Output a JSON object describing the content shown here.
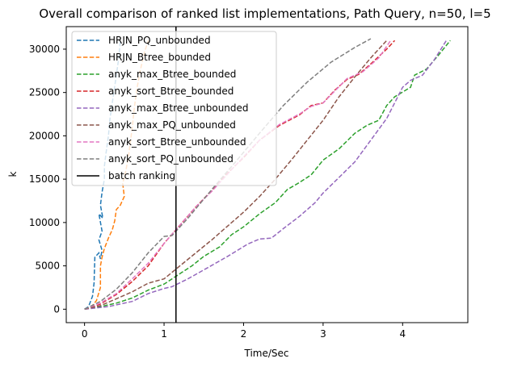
{
  "chart_data": {
    "type": "line",
    "title": "Overall comparison of ranked list implementations, Path Query, n=50, l=5",
    "xlabel": "Time/Sec",
    "ylabel": "k",
    "xlim": [
      -0.23,
      4.82
    ],
    "ylim": [
      -1550,
      32600
    ],
    "xticks": [
      0,
      1,
      2,
      3,
      4
    ],
    "yticks": [
      0,
      5000,
      10000,
      15000,
      20000,
      25000,
      30000
    ],
    "grid": false,
    "legend_position": "top-left",
    "series": [
      {
        "name": "HRJN_PQ_unbounded",
        "color": "#1f77b4",
        "style": "dashed",
        "points": [
          [
            0,
            0
          ],
          [
            0.05,
            300
          ],
          [
            0.1,
            1500
          ],
          [
            0.12,
            3000
          ],
          [
            0.13,
            6000
          ],
          [
            0.18,
            6500
          ],
          [
            0.2,
            5800
          ],
          [
            0.22,
            6800
          ],
          [
            0.18,
            8000
          ],
          [
            0.22,
            9000
          ],
          [
            0.18,
            11000
          ],
          [
            0.23,
            10500
          ],
          [
            0.2,
            12000
          ],
          [
            0.22,
            13500
          ],
          [
            0.25,
            15000
          ],
          [
            0.25,
            16500
          ],
          [
            0.27,
            18000
          ],
          [
            0.3,
            20000
          ],
          [
            0.32,
            22000
          ],
          [
            0.36,
            24500
          ],
          [
            0.4,
            27000
          ],
          [
            0.43,
            29000
          ],
          [
            0.45,
            31000
          ]
        ]
      },
      {
        "name": "HRJN_Btree_bounded",
        "color": "#ff7f0e",
        "style": "dashed",
        "points": [
          [
            0,
            0
          ],
          [
            0.08,
            200
          ],
          [
            0.15,
            1000
          ],
          [
            0.2,
            2500
          ],
          [
            0.2,
            5000
          ],
          [
            0.22,
            6000
          ],
          [
            0.25,
            7000
          ],
          [
            0.3,
            8200
          ],
          [
            0.35,
            9200
          ],
          [
            0.38,
            10200
          ],
          [
            0.4,
            11500
          ],
          [
            0.45,
            12000
          ],
          [
            0.5,
            13000
          ],
          [
            0.48,
            14500
          ],
          [
            0.52,
            16000
          ],
          [
            0.55,
            17500
          ],
          [
            0.58,
            19500
          ],
          [
            0.6,
            21000
          ],
          [
            0.63,
            23500
          ],
          [
            0.66,
            25500
          ],
          [
            0.7,
            27500
          ],
          [
            0.75,
            29500
          ],
          [
            0.8,
            31000
          ]
        ]
      },
      {
        "name": "anyk_max_Btree_bounded",
        "color": "#2ca02c",
        "style": "dashed",
        "points": [
          [
            0,
            0
          ],
          [
            0.2,
            300
          ],
          [
            0.4,
            700
          ],
          [
            0.6,
            1300
          ],
          [
            0.8,
            2200
          ],
          [
            1,
            2900
          ],
          [
            1.2,
            4100
          ],
          [
            1.35,
            5000
          ],
          [
            1.5,
            6100
          ],
          [
            1.7,
            7200
          ],
          [
            1.85,
            8600
          ],
          [
            2.0,
            9500
          ],
          [
            2.2,
            11000
          ],
          [
            2.4,
            12300
          ],
          [
            2.55,
            13800
          ],
          [
            2.7,
            14600
          ],
          [
            2.85,
            15500
          ],
          [
            3.0,
            17200
          ],
          [
            3.2,
            18500
          ],
          [
            3.4,
            20300
          ],
          [
            3.55,
            21200
          ],
          [
            3.7,
            21800
          ],
          [
            3.8,
            23500
          ],
          [
            3.9,
            24500
          ],
          [
            4.1,
            25600
          ],
          [
            4.15,
            27000
          ],
          [
            4.3,
            27700
          ],
          [
            4.45,
            29300
          ],
          [
            4.6,
            31000
          ]
        ]
      },
      {
        "name": "anyk_sort_Btree_bounded",
        "color": "#d62728",
        "style": "dashed",
        "points": [
          [
            0,
            0
          ],
          [
            0.2,
            600
          ],
          [
            0.4,
            1700
          ],
          [
            0.6,
            3200
          ],
          [
            0.8,
            5000
          ],
          [
            1.0,
            7600
          ],
          [
            1.2,
            9700
          ],
          [
            1.4,
            11800
          ],
          [
            1.6,
            13700
          ],
          [
            1.8,
            15700
          ],
          [
            2.0,
            17500
          ],
          [
            2.2,
            19500
          ],
          [
            2.45,
            21200
          ],
          [
            2.7,
            22400
          ],
          [
            2.85,
            23500
          ],
          [
            3.0,
            23800
          ],
          [
            3.15,
            25300
          ],
          [
            3.3,
            26500
          ],
          [
            3.45,
            27100
          ],
          [
            3.6,
            28300
          ],
          [
            3.8,
            30000
          ],
          [
            3.9,
            31000
          ]
        ]
      },
      {
        "name": "anyk_max_Btree_unbounded",
        "color": "#9467bd",
        "style": "dashed",
        "points": [
          [
            0,
            0
          ],
          [
            0.3,
            300
          ],
          [
            0.6,
            900
          ],
          [
            0.8,
            1800
          ],
          [
            1.0,
            2400
          ],
          [
            1.1,
            2600
          ],
          [
            1.3,
            3500
          ],
          [
            1.55,
            4800
          ],
          [
            1.8,
            6100
          ],
          [
            2.05,
            7500
          ],
          [
            2.2,
            8100
          ],
          [
            2.35,
            8200
          ],
          [
            2.5,
            9300
          ],
          [
            2.7,
            10700
          ],
          [
            2.9,
            12300
          ],
          [
            3.0,
            13400
          ],
          [
            3.2,
            15200
          ],
          [
            3.4,
            17000
          ],
          [
            3.6,
            19500
          ],
          [
            3.8,
            22000
          ],
          [
            4.0,
            25600
          ],
          [
            4.1,
            26400
          ],
          [
            4.25,
            27000
          ],
          [
            4.4,
            28800
          ],
          [
            4.55,
            31000
          ]
        ]
      },
      {
        "name": "anyk_max_PQ_unbounded",
        "color": "#8c564b",
        "style": "dashed",
        "points": [
          [
            0,
            0
          ],
          [
            0.2,
            400
          ],
          [
            0.4,
            1200
          ],
          [
            0.6,
            2000
          ],
          [
            0.8,
            3000
          ],
          [
            1.0,
            3500
          ],
          [
            1.2,
            5000
          ],
          [
            1.4,
            6500
          ],
          [
            1.6,
            8000
          ],
          [
            1.85,
            10000
          ],
          [
            2.0,
            11200
          ],
          [
            2.2,
            13000
          ],
          [
            2.4,
            15000
          ],
          [
            2.6,
            17200
          ],
          [
            2.8,
            19500
          ],
          [
            3.0,
            21800
          ],
          [
            3.2,
            24500
          ],
          [
            3.4,
            26800
          ],
          [
            3.6,
            29000
          ],
          [
            3.8,
            31000
          ]
        ]
      },
      {
        "name": "anyk_sort_Btree_unbounded",
        "color": "#e377c2",
        "style": "dashed",
        "points": [
          [
            0,
            0
          ],
          [
            0.2,
            700
          ],
          [
            0.4,
            1800
          ],
          [
            0.6,
            3500
          ],
          [
            0.8,
            5300
          ],
          [
            1.0,
            7600
          ],
          [
            1.2,
            9700
          ],
          [
            1.4,
            11800
          ],
          [
            1.6,
            13600
          ],
          [
            1.8,
            15600
          ],
          [
            2.0,
            17600
          ],
          [
            2.2,
            19500
          ],
          [
            2.45,
            21300
          ],
          [
            2.7,
            22500
          ],
          [
            2.85,
            23400
          ],
          [
            3.0,
            23800
          ],
          [
            3.15,
            25200
          ],
          [
            3.3,
            26600
          ],
          [
            3.5,
            27400
          ],
          [
            3.7,
            29000
          ],
          [
            3.85,
            31000
          ]
        ]
      },
      {
        "name": "anyk_sort_PQ_unbounded",
        "color": "#7f7f7f",
        "style": "dashed",
        "points": [
          [
            0,
            0
          ],
          [
            0.2,
            900
          ],
          [
            0.4,
            2300
          ],
          [
            0.6,
            4200
          ],
          [
            0.8,
            6500
          ],
          [
            1.0,
            8400
          ],
          [
            1.1,
            8500
          ],
          [
            1.3,
            10500
          ],
          [
            1.6,
            13800
          ],
          [
            1.9,
            17000
          ],
          [
            2.2,
            20300
          ],
          [
            2.5,
            23500
          ],
          [
            2.8,
            26200
          ],
          [
            3.1,
            28500
          ],
          [
            3.4,
            30200
          ],
          [
            3.6,
            31200
          ]
        ]
      },
      {
        "name": "batch ranking",
        "color": "#000000",
        "style": "solid",
        "points": [
          [
            1.15,
            -1550
          ],
          [
            1.15,
            32600
          ]
        ]
      }
    ]
  }
}
